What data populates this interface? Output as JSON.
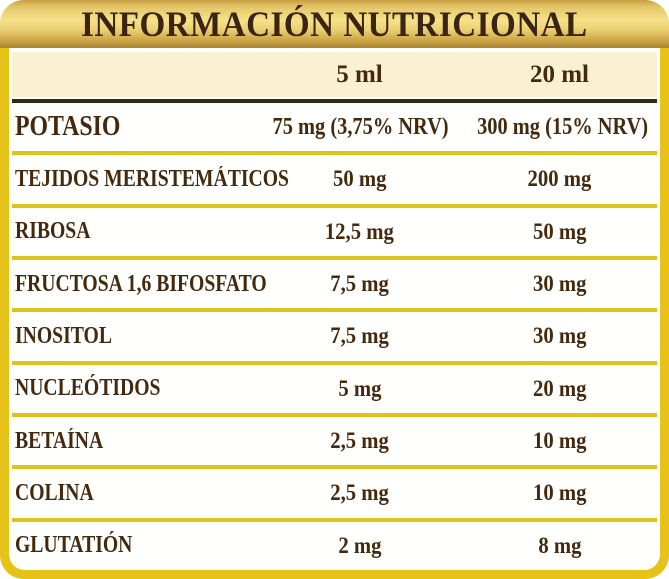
{
  "title": "INFORMACIÓN NUTRICIONAL",
  "columns": [
    "5 ml",
    "20 ml"
  ],
  "rows": [
    {
      "label": "POTASIO",
      "v1": "75 mg (3,75% NRV)",
      "v2": "300 mg (15% NRV)"
    },
    {
      "label": "TEJIDOS MERISTEMÁTICOS",
      "v1": "50 mg",
      "v2": "200 mg"
    },
    {
      "label": "RIBOSA",
      "v1": "12,5 mg",
      "v2": "50 mg"
    },
    {
      "label": "FRUCTOSA 1,6 BIFOSFATO",
      "v1": "7,5 mg",
      "v2": "30 mg"
    },
    {
      "label": "INOSITOL",
      "v1": "7,5 mg",
      "v2": "30 mg"
    },
    {
      "label": "NUCLEÓTIDOS",
      "v1": "5 mg",
      "v2": "20 mg"
    },
    {
      "label": "BETAÍNA",
      "v1": "2,5 mg",
      "v2": "10 mg"
    },
    {
      "label": "COLINA",
      "v1": "2,5 mg",
      "v2": "10 mg"
    },
    {
      "label": "GLUTATIÓN",
      "v1": "2 mg",
      "v2": "8 mg"
    }
  ],
  "colors": {
    "frame_gold": "#E6C318",
    "header_gradient_top": "#C79F42",
    "header_gradient_mid": "#F6E28A",
    "header_gradient_bottom": "#AA8630",
    "subheader_cream": "#FAF1D3",
    "row_background": "#FFFFFE",
    "divider_yellow": "#DEC31B",
    "header_divider_dark": "#332718",
    "text_brown": "#45290E",
    "title_brown": "#3A2413"
  }
}
